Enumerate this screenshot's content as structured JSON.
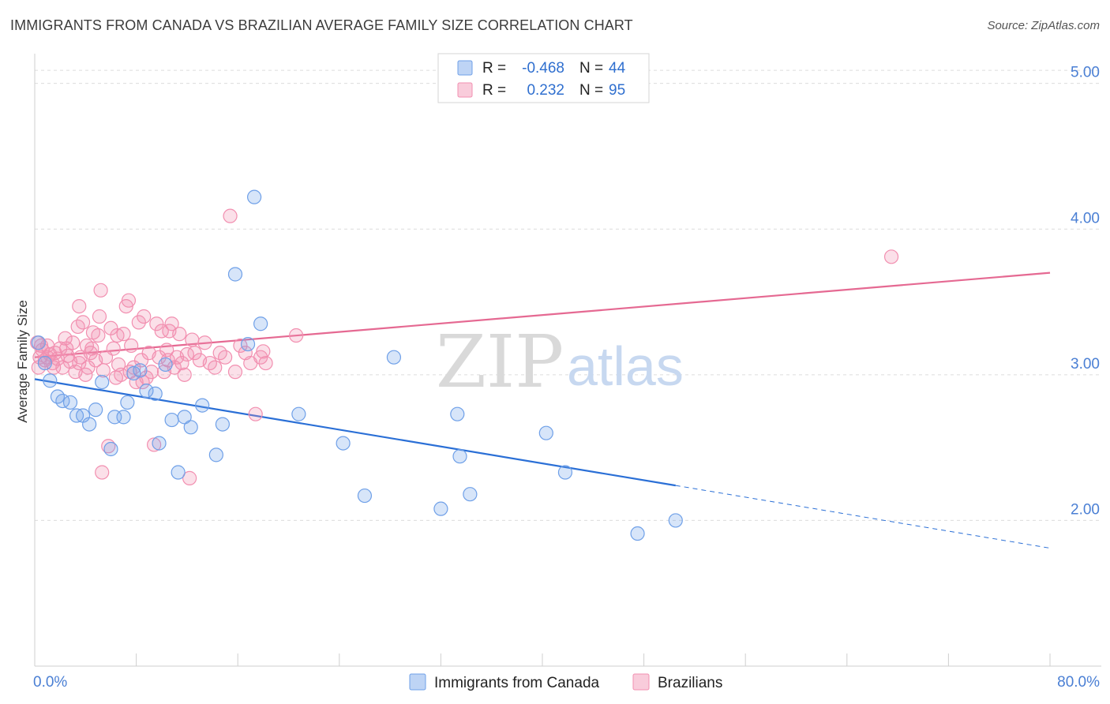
{
  "header": {
    "title": "IMMIGRANTS FROM CANADA VS BRAZILIAN AVERAGE FAMILY SIZE CORRELATION CHART",
    "source": "Source: ZipAtlas.com"
  },
  "watermark": {
    "zip": "ZIP",
    "atlas": "atlas"
  },
  "chart_data": {
    "type": "scatter",
    "title": "IMMIGRANTS FROM CANADA VS BRAZILIAN AVERAGE FAMILY SIZE CORRELATION CHART",
    "xlabel": "",
    "ylabel": "Average Family Size",
    "xlim": [
      0,
      80
    ],
    "ylim": [
      1.0,
      5.15
    ],
    "x_tick_labels": [
      "0.0%",
      "80.0%"
    ],
    "y_ticks": [
      2.0,
      3.0,
      4.0,
      5.0
    ],
    "y_tick_labels": [
      "2.00",
      "3.00",
      "4.00",
      "5.00"
    ],
    "grid": true,
    "legend_position": "top-center",
    "stats": [
      {
        "r_label": "R =",
        "r": "-0.468",
        "n_label": "N =",
        "n": "44"
      },
      {
        "r_label": "R =",
        "r": "0.232",
        "n_label": "N =",
        "n": "95"
      }
    ],
    "series": [
      {
        "name": "Immigrants from Canada",
        "color": "#6fa0e8",
        "line_color": "#2a6fd6",
        "trend": {
          "x0": 0,
          "y0": 2.97,
          "x1": 50.5,
          "y1": 2.24,
          "dash_x1": 80,
          "dash_y1": 1.81
        },
        "points": [
          [
            0.3,
            3.22
          ],
          [
            0.8,
            3.08
          ],
          [
            1.2,
            2.96
          ],
          [
            1.8,
            2.85
          ],
          [
            2.2,
            2.82
          ],
          [
            2.8,
            2.81
          ],
          [
            3.3,
            2.72
          ],
          [
            3.8,
            2.72
          ],
          [
            4.3,
            2.66
          ],
          [
            4.8,
            2.76
          ],
          [
            5.3,
            2.95
          ],
          [
            6.0,
            2.49
          ],
          [
            6.3,
            2.71
          ],
          [
            7.0,
            2.71
          ],
          [
            7.3,
            2.81
          ],
          [
            7.8,
            3.01
          ],
          [
            8.3,
            3.03
          ],
          [
            8.8,
            2.89
          ],
          [
            9.5,
            2.87
          ],
          [
            9.8,
            2.53
          ],
          [
            10.3,
            3.07
          ],
          [
            10.8,
            2.69
          ],
          [
            11.3,
            2.33
          ],
          [
            11.8,
            2.71
          ],
          [
            12.3,
            2.64
          ],
          [
            13.2,
            2.79
          ],
          [
            14.3,
            2.45
          ],
          [
            14.8,
            2.66
          ],
          [
            15.8,
            3.69
          ],
          [
            16.8,
            3.21
          ],
          [
            17.3,
            4.22
          ],
          [
            17.8,
            3.35
          ],
          [
            20.8,
            2.73
          ],
          [
            24.3,
            2.53
          ],
          [
            26.0,
            2.17
          ],
          [
            28.3,
            3.12
          ],
          [
            32.0,
            2.08
          ],
          [
            33.3,
            2.73
          ],
          [
            33.5,
            2.44
          ],
          [
            34.3,
            2.18
          ],
          [
            40.3,
            2.6
          ],
          [
            41.8,
            2.33
          ],
          [
            47.5,
            1.91
          ],
          [
            50.5,
            2.0
          ]
        ]
      },
      {
        "name": "Brazilians",
        "color": "#f28fb0",
        "line_color": "#e56992",
        "trend": {
          "x0": 0,
          "y0": 3.12,
          "x1": 80,
          "y1": 3.7
        },
        "points": [
          [
            0.2,
            3.22
          ],
          [
            0.4,
            3.12
          ],
          [
            0.6,
            3.17
          ],
          [
            0.8,
            3.1
          ],
          [
            1.0,
            3.2
          ],
          [
            1.2,
            3.14
          ],
          [
            1.4,
            3.08
          ],
          [
            1.6,
            3.15
          ],
          [
            1.8,
            3.11
          ],
          [
            2.0,
            3.18
          ],
          [
            2.2,
            3.05
          ],
          [
            2.4,
            3.25
          ],
          [
            2.6,
            3.13
          ],
          [
            2.8,
            3.09
          ],
          [
            3.0,
            3.22
          ],
          [
            3.2,
            3.02
          ],
          [
            3.4,
            3.33
          ],
          [
            3.5,
            3.47
          ],
          [
            3.6,
            3.12
          ],
          [
            3.8,
            3.36
          ],
          [
            4.0,
            3.0
          ],
          [
            4.1,
            3.2
          ],
          [
            4.2,
            3.05
          ],
          [
            4.4,
            3.15
          ],
          [
            4.6,
            3.29
          ],
          [
            4.8,
            3.1
          ],
          [
            5.0,
            3.27
          ],
          [
            5.1,
            3.4
          ],
          [
            5.2,
            3.58
          ],
          [
            5.3,
            2.33
          ],
          [
            5.4,
            3.03
          ],
          [
            5.6,
            3.12
          ],
          [
            5.8,
            2.51
          ],
          [
            6.0,
            3.32
          ],
          [
            6.2,
            3.18
          ],
          [
            6.4,
            2.98
          ],
          [
            6.6,
            3.07
          ],
          [
            6.8,
            3.0
          ],
          [
            7.0,
            3.28
          ],
          [
            7.2,
            3.47
          ],
          [
            7.4,
            3.51
          ],
          [
            7.6,
            3.2
          ],
          [
            7.8,
            3.05
          ],
          [
            8.0,
            2.95
          ],
          [
            8.2,
            3.36
          ],
          [
            8.4,
            3.1
          ],
          [
            8.6,
            3.4
          ],
          [
            8.8,
            2.98
          ],
          [
            9.0,
            3.15
          ],
          [
            9.2,
            3.02
          ],
          [
            9.4,
            2.52
          ],
          [
            9.6,
            3.35
          ],
          [
            9.8,
            3.12
          ],
          [
            10.0,
            3.3
          ],
          [
            10.2,
            3.02
          ],
          [
            10.4,
            3.17
          ],
          [
            10.6,
            3.3
          ],
          [
            10.8,
            3.35
          ],
          [
            11.0,
            3.05
          ],
          [
            11.2,
            3.12
          ],
          [
            11.4,
            3.28
          ],
          [
            11.6,
            3.08
          ],
          [
            11.8,
            3.0
          ],
          [
            12.0,
            3.14
          ],
          [
            12.2,
            2.29
          ],
          [
            12.4,
            3.24
          ],
          [
            12.6,
            3.15
          ],
          [
            13.0,
            3.1
          ],
          [
            13.4,
            3.22
          ],
          [
            13.8,
            3.08
          ],
          [
            14.2,
            3.05
          ],
          [
            14.6,
            3.15
          ],
          [
            15.0,
            3.12
          ],
          [
            15.4,
            4.09
          ],
          [
            15.8,
            3.02
          ],
          [
            16.2,
            3.2
          ],
          [
            16.6,
            3.15
          ],
          [
            17.0,
            3.08
          ],
          [
            17.4,
            2.73
          ],
          [
            17.8,
            3.12
          ],
          [
            18.0,
            3.16
          ],
          [
            18.2,
            3.08
          ],
          [
            0.3,
            3.05
          ],
          [
            0.5,
            3.2
          ],
          [
            1.0,
            3.12
          ],
          [
            1.5,
            3.05
          ],
          [
            2.5,
            3.18
          ],
          [
            3.5,
            3.08
          ],
          [
            4.5,
            3.18
          ],
          [
            6.5,
            3.27
          ],
          [
            7.5,
            3.02
          ],
          [
            8.5,
            2.95
          ],
          [
            10.5,
            3.1
          ],
          [
            20.6,
            3.27
          ],
          [
            67.5,
            3.81
          ]
        ]
      }
    ]
  }
}
